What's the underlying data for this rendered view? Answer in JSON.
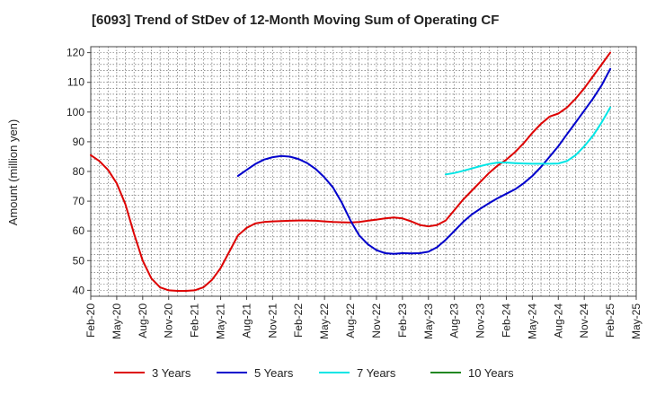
{
  "chart_data": {
    "type": "line",
    "title": "[6093]  Trend of StDev of 12-Month Moving Sum of Operating CF",
    "xlabel": "",
    "ylabel": "Amount (million yen)",
    "ylim": [
      38,
      122
    ],
    "yticks": [
      40,
      50,
      60,
      70,
      80,
      90,
      100,
      110,
      120
    ],
    "x_tick_labels": [
      "Feb-20",
      "May-20",
      "Aug-20",
      "Nov-20",
      "Feb-21",
      "May-21",
      "Aug-21",
      "Nov-21",
      "Feb-22",
      "May-22",
      "Aug-22",
      "Nov-22",
      "Feb-23",
      "May-23",
      "Aug-23",
      "Nov-23",
      "Feb-24",
      "May-24",
      "Aug-24",
      "Nov-24",
      "Feb-25",
      "May-25"
    ],
    "x_range": [
      "Feb-20",
      "May-25"
    ],
    "grid": true,
    "legend_position": "bottom",
    "series": [
      {
        "name": "3 Years",
        "color": "#dd0000",
        "points": [
          [
            "Feb-20",
            85.5
          ],
          [
            "Mar-20",
            83.5
          ],
          [
            "Apr-20",
            80.5
          ],
          [
            "May-20",
            76
          ],
          [
            "Jun-20",
            69
          ],
          [
            "Jul-20",
            59
          ],
          [
            "Aug-20",
            50
          ],
          [
            "Sep-20",
            44
          ],
          [
            "Oct-20",
            41
          ],
          [
            "Nov-20",
            40
          ],
          [
            "Dec-20",
            39.8
          ],
          [
            "Jan-21",
            39.8
          ],
          [
            "Feb-21",
            40
          ],
          [
            "Mar-21",
            41
          ],
          [
            "Apr-21",
            43.5
          ],
          [
            "May-21",
            47.5
          ],
          [
            "Jun-21",
            53
          ],
          [
            "Jul-21",
            58.5
          ],
          [
            "Aug-21",
            61
          ],
          [
            "Sep-21",
            62.5
          ],
          [
            "Oct-21",
            63
          ],
          [
            "Nov-21",
            63.2
          ],
          [
            "Dec-21",
            63.3
          ],
          [
            "Jan-22",
            63.4
          ],
          [
            "Feb-22",
            63.5
          ],
          [
            "Mar-22",
            63.5
          ],
          [
            "Apr-22",
            63.4
          ],
          [
            "May-22",
            63.2
          ],
          [
            "Jun-22",
            63
          ],
          [
            "Jul-22",
            62.9
          ],
          [
            "Aug-22",
            62.8
          ],
          [
            "Sep-22",
            63
          ],
          [
            "Oct-22",
            63.4
          ],
          [
            "Nov-22",
            63.8
          ],
          [
            "Dec-22",
            64.2
          ],
          [
            "Jan-23",
            64.5
          ],
          [
            "Feb-23",
            64.2
          ],
          [
            "Mar-23",
            63.2
          ],
          [
            "Apr-23",
            62
          ],
          [
            "May-23",
            61.5
          ],
          [
            "Jun-23",
            62
          ],
          [
            "Jul-23",
            63.5
          ],
          [
            "Aug-23",
            67
          ],
          [
            "Sep-23",
            70.5
          ],
          [
            "Oct-23",
            73.5
          ],
          [
            "Nov-23",
            76.5
          ],
          [
            "Dec-23",
            79.5
          ],
          [
            "Jan-24",
            82
          ],
          [
            "Feb-24",
            84
          ],
          [
            "Mar-24",
            86.5
          ],
          [
            "Apr-24",
            89.5
          ],
          [
            "May-24",
            93
          ],
          [
            "Jun-24",
            96
          ],
          [
            "Jul-24",
            98.5
          ],
          [
            "Aug-24",
            99.5
          ],
          [
            "Sep-24",
            101.5
          ],
          [
            "Oct-24",
            104.5
          ],
          [
            "Nov-24",
            108
          ],
          [
            "Dec-24",
            112
          ],
          [
            "Jan-25",
            116
          ],
          [
            "Feb-25",
            120
          ]
        ]
      },
      {
        "name": "5 Years",
        "color": "#0000cc",
        "points": [
          [
            "Jul-21",
            78.5
          ],
          [
            "Aug-21",
            80.5
          ],
          [
            "Sep-21",
            82.5
          ],
          [
            "Oct-21",
            84
          ],
          [
            "Nov-21",
            84.8
          ],
          [
            "Dec-21",
            85.2
          ],
          [
            "Jan-22",
            85
          ],
          [
            "Feb-22",
            84.2
          ],
          [
            "Mar-22",
            82.8
          ],
          [
            "Apr-22",
            80.8
          ],
          [
            "May-22",
            78
          ],
          [
            "Jun-22",
            74.5
          ],
          [
            "Jul-22",
            69.5
          ],
          [
            "Aug-22",
            63.5
          ],
          [
            "Sep-22",
            58.5
          ],
          [
            "Oct-22",
            55.5
          ],
          [
            "Nov-22",
            53.5
          ],
          [
            "Dec-22",
            52.5
          ],
          [
            "Jan-23",
            52.3
          ],
          [
            "Feb-23",
            52.5
          ],
          [
            "Mar-23",
            52.4
          ],
          [
            "Apr-23",
            52.5
          ],
          [
            "May-23",
            53
          ],
          [
            "Jun-23",
            54.5
          ],
          [
            "Jul-23",
            57
          ],
          [
            "Aug-23",
            60
          ],
          [
            "Sep-23",
            63
          ],
          [
            "Oct-23",
            65.5
          ],
          [
            "Nov-23",
            67.5
          ],
          [
            "Dec-23",
            69.3
          ],
          [
            "Jan-24",
            71
          ],
          [
            "Feb-24",
            72.5
          ],
          [
            "Mar-24",
            74
          ],
          [
            "Apr-24",
            76
          ],
          [
            "May-24",
            78.5
          ],
          [
            "Jun-24",
            81.5
          ],
          [
            "Jul-24",
            85
          ],
          [
            "Aug-24",
            88.5
          ],
          [
            "Sep-24",
            92.5
          ],
          [
            "Oct-24",
            96.5
          ],
          [
            "Nov-24",
            100.5
          ],
          [
            "Dec-24",
            104.5
          ],
          [
            "Jan-25",
            109
          ],
          [
            "Feb-25",
            114.5
          ]
        ]
      },
      {
        "name": "7 Years",
        "color": "#00e5e5",
        "points": [
          [
            "Jul-23",
            79
          ],
          [
            "Aug-23",
            79.5
          ],
          [
            "Sep-23",
            80.2
          ],
          [
            "Oct-23",
            81
          ],
          [
            "Nov-23",
            81.8
          ],
          [
            "Dec-23",
            82.5
          ],
          [
            "Jan-24",
            83
          ],
          [
            "Feb-24",
            83
          ],
          [
            "Mar-24",
            82.8
          ],
          [
            "Apr-24",
            82.7
          ],
          [
            "May-24",
            82.6
          ],
          [
            "Jun-24",
            82.6
          ],
          [
            "Jul-24",
            82.6
          ],
          [
            "Aug-24",
            82.7
          ],
          [
            "Sep-24",
            83.5
          ],
          [
            "Oct-24",
            85.5
          ],
          [
            "Nov-24",
            88.5
          ],
          [
            "Dec-24",
            92
          ],
          [
            "Jan-25",
            96.5
          ],
          [
            "Feb-25",
            101.5
          ]
        ]
      },
      {
        "name": "10 Years",
        "color": "#228822",
        "points": []
      }
    ]
  }
}
